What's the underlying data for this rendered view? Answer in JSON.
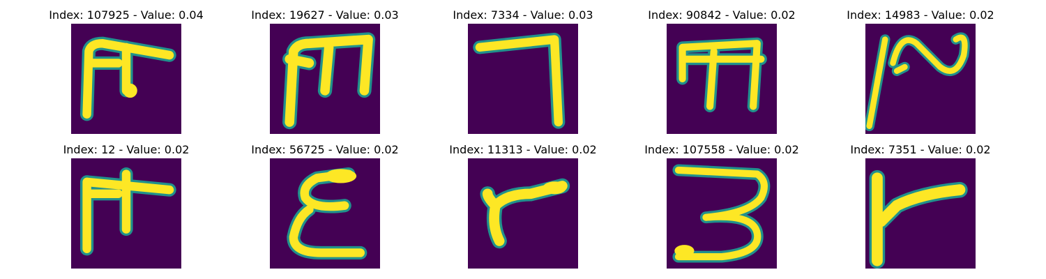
{
  "panels": [
    {
      "title": "Index: 107925 - Value: 0.04",
      "depicts": "glyph resembling T with crossbar"
    },
    {
      "title": "Index: 19627 - Value: 0.03",
      "depicts": "glyph resembling m"
    },
    {
      "title": "Index: 7334 - Value: 0.03",
      "depicts": "glyph resembling 7"
    },
    {
      "title": "Index: 90842 - Value: 0.02",
      "depicts": "glyph resembling m"
    },
    {
      "title": "Index: 14983 - Value: 0.02",
      "depicts": "glyph resembling wavy stroke"
    },
    {
      "title": "Index: 12 - Value: 0.02",
      "depicts": "glyph resembling T with crossbar"
    },
    {
      "title": "Index: 56725 - Value: 0.02",
      "depicts": "glyph resembling epsilon"
    },
    {
      "title": "Index: 11313 - Value: 0.02",
      "depicts": "glyph resembling r"
    },
    {
      "title": "Index: 107558 - Value: 0.02",
      "depicts": "glyph resembling 3"
    },
    {
      "title": "Index: 7351 - Value: 0.02",
      "depicts": "glyph resembling sideways T"
    }
  ],
  "colors": {
    "background": "#440154",
    "stroke": "#fde725",
    "edge": "#21918c"
  }
}
